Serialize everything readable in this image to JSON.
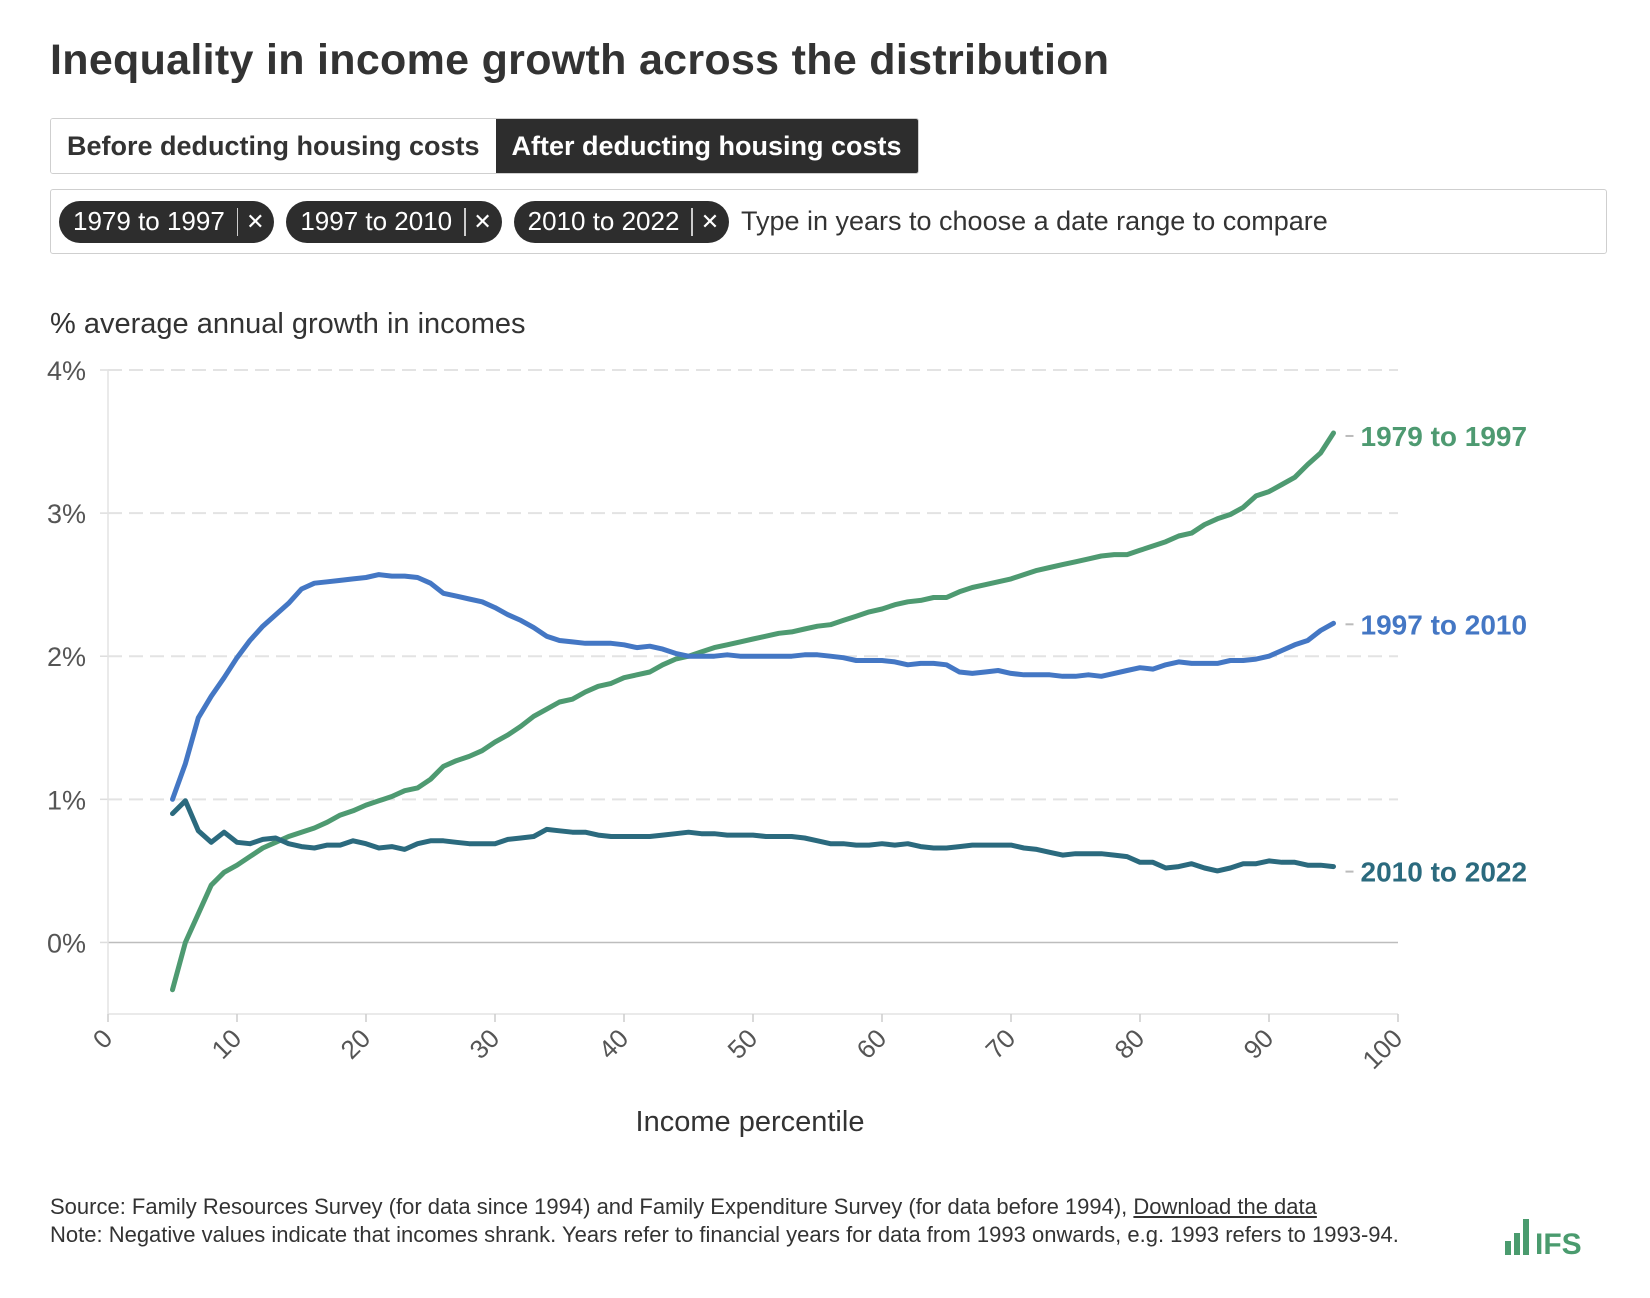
{
  "title": "Inequality in income growth across the distribution",
  "toggle": {
    "before_label": "Before deducting housing costs",
    "after_label": "After deducting housing costs",
    "selected": "after"
  },
  "search": {
    "tags": [
      {
        "label": "1979 to 1997"
      },
      {
        "label": "1997 to 2010"
      },
      {
        "label": "2010 to 2022"
      }
    ],
    "remove_icon": "close-icon",
    "placeholder": "Type in years to choose a date range to compare"
  },
  "footer": {
    "source": "Source: Family Resources Survey (for data since 1994) and Family Expenditure Survey (for data before 1994), ",
    "download_link": "Download the data",
    "note": "Note: Negative values indicate that incomes shrank. Years refer to financial years for data from 1993 onwards, e.g. 1993 refers to 1993-94."
  },
  "logo": {
    "text": "IFS",
    "color": "#4a9b6e"
  },
  "chart_data": {
    "type": "line",
    "ylabel": "% average annual growth in incomes",
    "xlabel": "Income percentile",
    "xlim": [
      0,
      100
    ],
    "ylim": [
      -0.5,
      4
    ],
    "xticks": [
      0,
      10,
      20,
      30,
      40,
      50,
      60,
      70,
      80,
      90,
      100
    ],
    "yticks": [
      0,
      1,
      2,
      3,
      4
    ],
    "ytick_labels": [
      "0%",
      "1%",
      "2%",
      "3%",
      "4%"
    ],
    "grid": "horizontal dashed",
    "legend": "labels at line ends (right)",
    "x": [
      5,
      6,
      7,
      8,
      9,
      10,
      11,
      12,
      13,
      14,
      15,
      16,
      17,
      18,
      19,
      20,
      21,
      22,
      23,
      24,
      25,
      26,
      27,
      28,
      29,
      30,
      31,
      32,
      33,
      34,
      35,
      36,
      37,
      38,
      39,
      40,
      41,
      42,
      43,
      44,
      45,
      46,
      47,
      48,
      49,
      50,
      51,
      52,
      53,
      54,
      55,
      56,
      57,
      58,
      59,
      60,
      61,
      62,
      63,
      64,
      65,
      66,
      67,
      68,
      69,
      70,
      71,
      72,
      73,
      74,
      75,
      76,
      77,
      78,
      79,
      80,
      81,
      82,
      83,
      84,
      85,
      86,
      87,
      88,
      89,
      90,
      91,
      92,
      93,
      94,
      95
    ],
    "series": [
      {
        "name": "1979 to 1997",
        "color": "#4e9a71",
        "values": [
          -0.33,
          0,
          0.2,
          0.4,
          0.49,
          0.54,
          0.6,
          0.66,
          0.7,
          0.74,
          0.77,
          0.8,
          0.84,
          0.89,
          0.92,
          0.96,
          0.99,
          1.02,
          1.06,
          1.08,
          1.14,
          1.23,
          1.27,
          1.3,
          1.34,
          1.4,
          1.45,
          1.51,
          1.58,
          1.63,
          1.68,
          1.7,
          1.75,
          1.79,
          1.81,
          1.85,
          1.87,
          1.89,
          1.94,
          1.98,
          2.0,
          2.03,
          2.06,
          2.08,
          2.1,
          2.12,
          2.14,
          2.16,
          2.17,
          2.19,
          2.21,
          2.22,
          2.25,
          2.28,
          2.31,
          2.33,
          2.36,
          2.38,
          2.39,
          2.41,
          2.41,
          2.45,
          2.48,
          2.5,
          2.52,
          2.54,
          2.57,
          2.6,
          2.62,
          2.64,
          2.66,
          2.68,
          2.7,
          2.71,
          2.71,
          2.74,
          2.77,
          2.8,
          2.84,
          2.86,
          2.92,
          2.96,
          2.99,
          3.04,
          3.12,
          3.15,
          3.2,
          3.25,
          3.34,
          3.42,
          3.56
        ]
      },
      {
        "name": "1997 to 2010",
        "color": "#4477c4",
        "values": [
          1.0,
          1.25,
          1.57,
          1.72,
          1.85,
          1.99,
          2.11,
          2.21,
          2.29,
          2.37,
          2.47,
          2.51,
          2.52,
          2.53,
          2.54,
          2.55,
          2.57,
          2.56,
          2.56,
          2.55,
          2.51,
          2.44,
          2.42,
          2.4,
          2.38,
          2.34,
          2.29,
          2.25,
          2.2,
          2.14,
          2.11,
          2.1,
          2.09,
          2.09,
          2.09,
          2.08,
          2.06,
          2.07,
          2.05,
          2.02,
          2.0,
          2.0,
          2.0,
          2.01,
          2.0,
          2.0,
          2.0,
          2.0,
          2.0,
          2.01,
          2.01,
          2.0,
          1.99,
          1.97,
          1.97,
          1.97,
          1.96,
          1.94,
          1.95,
          1.95,
          1.94,
          1.89,
          1.88,
          1.89,
          1.9,
          1.88,
          1.87,
          1.87,
          1.87,
          1.86,
          1.86,
          1.87,
          1.86,
          1.88,
          1.9,
          1.92,
          1.91,
          1.94,
          1.96,
          1.95,
          1.95,
          1.95,
          1.97,
          1.97,
          1.98,
          2.0,
          2.04,
          2.08,
          2.11,
          2.18,
          2.23
        ]
      },
      {
        "name": "2010 to 2022",
        "color": "#2b6a7e",
        "values": [
          0.9,
          0.99,
          0.78,
          0.7,
          0.77,
          0.7,
          0.69,
          0.72,
          0.73,
          0.69,
          0.67,
          0.66,
          0.68,
          0.68,
          0.71,
          0.69,
          0.66,
          0.67,
          0.65,
          0.69,
          0.71,
          0.71,
          0.7,
          0.69,
          0.69,
          0.69,
          0.72,
          0.73,
          0.74,
          0.79,
          0.78,
          0.77,
          0.77,
          0.75,
          0.74,
          0.74,
          0.74,
          0.74,
          0.75,
          0.76,
          0.77,
          0.76,
          0.76,
          0.75,
          0.75,
          0.75,
          0.74,
          0.74,
          0.74,
          0.73,
          0.71,
          0.69,
          0.69,
          0.68,
          0.68,
          0.69,
          0.68,
          0.69,
          0.67,
          0.66,
          0.66,
          0.67,
          0.68,
          0.68,
          0.68,
          0.68,
          0.66,
          0.65,
          0.63,
          0.61,
          0.62,
          0.62,
          0.62,
          0.61,
          0.6,
          0.56,
          0.56,
          0.52,
          0.53,
          0.55,
          0.52,
          0.5,
          0.52,
          0.55,
          0.55,
          0.57,
          0.56,
          0.56,
          0.54,
          0.54,
          0.53
        ]
      }
    ]
  }
}
